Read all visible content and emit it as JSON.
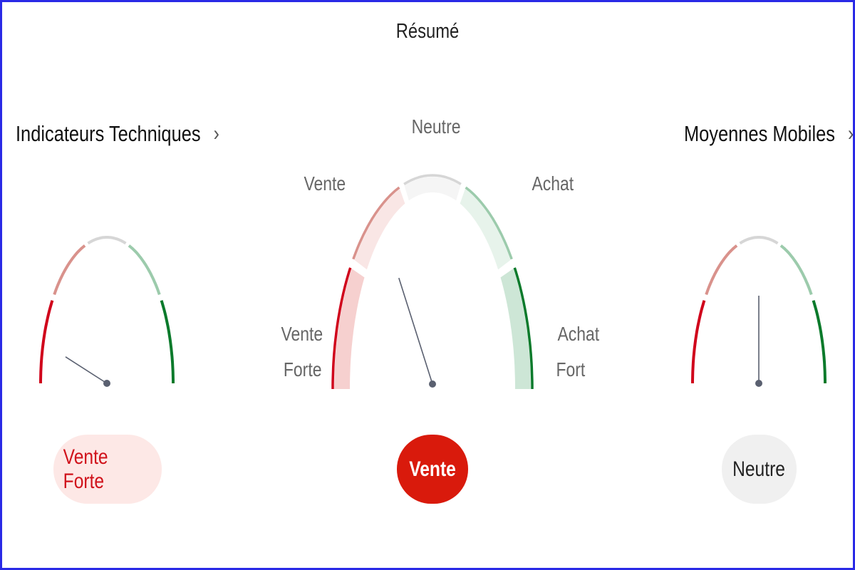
{
  "title": "Résumé",
  "left": {
    "heading": "Indicateurs Techniques",
    "chevron": "chevron-right-icon",
    "needle_fraction": 0.09,
    "result": "Vente Forte",
    "result_bg": "#fde8e6",
    "result_color": "#d0121b"
  },
  "center": {
    "labels": {
      "strong_sell": [
        "Vente",
        "Forte"
      ],
      "sell": "Vente",
      "neutral": "Neutre",
      "buy": "Achat",
      "strong_buy": [
        "Achat",
        "Fort"
      ]
    },
    "needle_fraction": 0.31,
    "result": "Vente",
    "result_bg": "#d91a0c",
    "result_color": "#ffffff"
  },
  "right": {
    "heading": "Moyennes Mobiles",
    "chevron": "chevron-right-icon",
    "needle_fraction": 0.5,
    "result": "Neutre",
    "result_bg": "#f0f0f0",
    "result_color": "#222222"
  },
  "colors": {
    "strokes": [
      "#d0021b",
      "#d9928c",
      "#d6d6d6",
      "#9ccbac",
      "#0b7a2b"
    ],
    "fills": [
      "#f6d0cf",
      "#f9e6e5",
      "#f5f5f5",
      "#e7f3eb",
      "#cde6d6"
    ],
    "needle": "#5a6070"
  }
}
